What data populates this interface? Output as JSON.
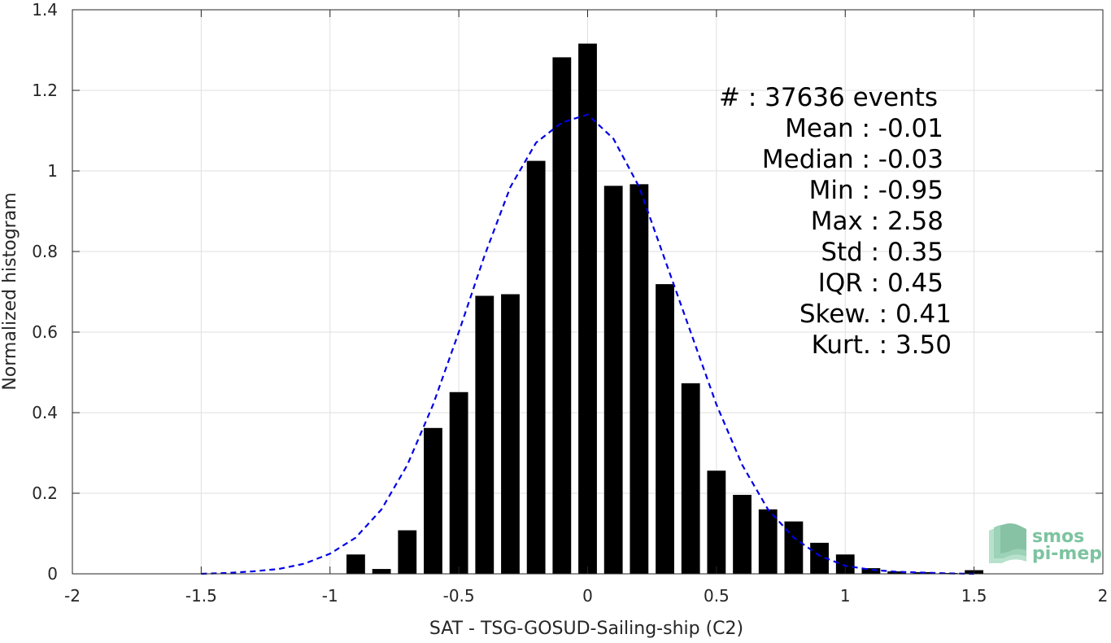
{
  "chart_data": {
    "type": "bar",
    "xlabel": "SAT - TSG-GOSUD-Sailing-ship (C2)",
    "ylabel": "Normalized histogram",
    "xlim": [
      -2,
      2
    ],
    "ylim": [
      0,
      1.4
    ],
    "xticks": [
      -2,
      -1.5,
      -1,
      -0.5,
      0,
      0.5,
      1,
      1.5,
      2
    ],
    "xtick_labels": [
      "-2",
      "-1.5",
      "-1",
      "-0.5",
      "0",
      "0.5",
      "1",
      "1.5",
      "2"
    ],
    "yticks": [
      0,
      0.2,
      0.4,
      0.6,
      0.8,
      1,
      1.2,
      1.4
    ],
    "ytick_labels": [
      "0",
      "0.2",
      "0.4",
      "0.6",
      "0.8",
      "1",
      "1.2",
      "1.4"
    ],
    "grid": true,
    "bin_width": 0.1,
    "bar_color": "#000000",
    "bins": [
      {
        "x": -0.9,
        "y": 0.048
      },
      {
        "x": -0.8,
        "y": 0.012
      },
      {
        "x": -0.7,
        "y": 0.108
      },
      {
        "x": -0.6,
        "y": 0.362
      },
      {
        "x": -0.5,
        "y": 0.451
      },
      {
        "x": -0.4,
        "y": 0.69
      },
      {
        "x": -0.3,
        "y": 0.694
      },
      {
        "x": -0.2,
        "y": 1.025
      },
      {
        "x": -0.1,
        "y": 1.282
      },
      {
        "x": 0.0,
        "y": 1.316
      },
      {
        "x": 0.1,
        "y": 0.963
      },
      {
        "x": 0.2,
        "y": 0.967
      },
      {
        "x": 0.3,
        "y": 0.719
      },
      {
        "x": 0.4,
        "y": 0.473
      },
      {
        "x": 0.5,
        "y": 0.256
      },
      {
        "x": 0.6,
        "y": 0.196
      },
      {
        "x": 0.7,
        "y": 0.16
      },
      {
        "x": 0.8,
        "y": 0.13
      },
      {
        "x": 0.9,
        "y": 0.077
      },
      {
        "x": 1.0,
        "y": 0.048
      },
      {
        "x": 1.1,
        "y": 0.014
      },
      {
        "x": 1.2,
        "y": 0.006
      },
      {
        "x": 1.3,
        "y": 0.004
      },
      {
        "x": 1.4,
        "y": 0.002
      },
      {
        "x": 1.5,
        "y": 0.009
      }
    ],
    "fit_curve": {
      "style": "dashed",
      "color": "#0000e6",
      "x": [
        -1.5,
        -1.4,
        -1.3,
        -1.2,
        -1.1,
        -1.0,
        -0.9,
        -0.8,
        -0.7,
        -0.6,
        -0.5,
        -0.4,
        -0.3,
        -0.2,
        -0.1,
        0.0,
        0.1,
        0.2,
        0.3,
        0.4,
        0.5,
        0.6,
        0.7,
        0.8,
        0.9,
        1.0,
        1.1,
        1.2,
        1.3,
        1.4,
        1.5
      ],
      "y": [
        0.0,
        0.002,
        0.006,
        0.012,
        0.025,
        0.05,
        0.09,
        0.16,
        0.27,
        0.42,
        0.6,
        0.79,
        0.96,
        1.07,
        1.12,
        1.14,
        1.08,
        0.96,
        0.78,
        0.6,
        0.42,
        0.27,
        0.16,
        0.09,
        0.045,
        0.02,
        0.01,
        0.005,
        0.003,
        0.001,
        0.0
      ]
    },
    "annotations": [
      "#  : 37636 events",
      "Mean : -0.01",
      "Median : -0.03",
      "Min : -0.95",
      "Max : 2.58",
      "Std : 0.35",
      "IQR : 0.45",
      "Skew. : 0.41",
      "Kurt. : 3.50"
    ]
  },
  "logo": {
    "line1": "smos",
    "line2": "pi-mep"
  }
}
